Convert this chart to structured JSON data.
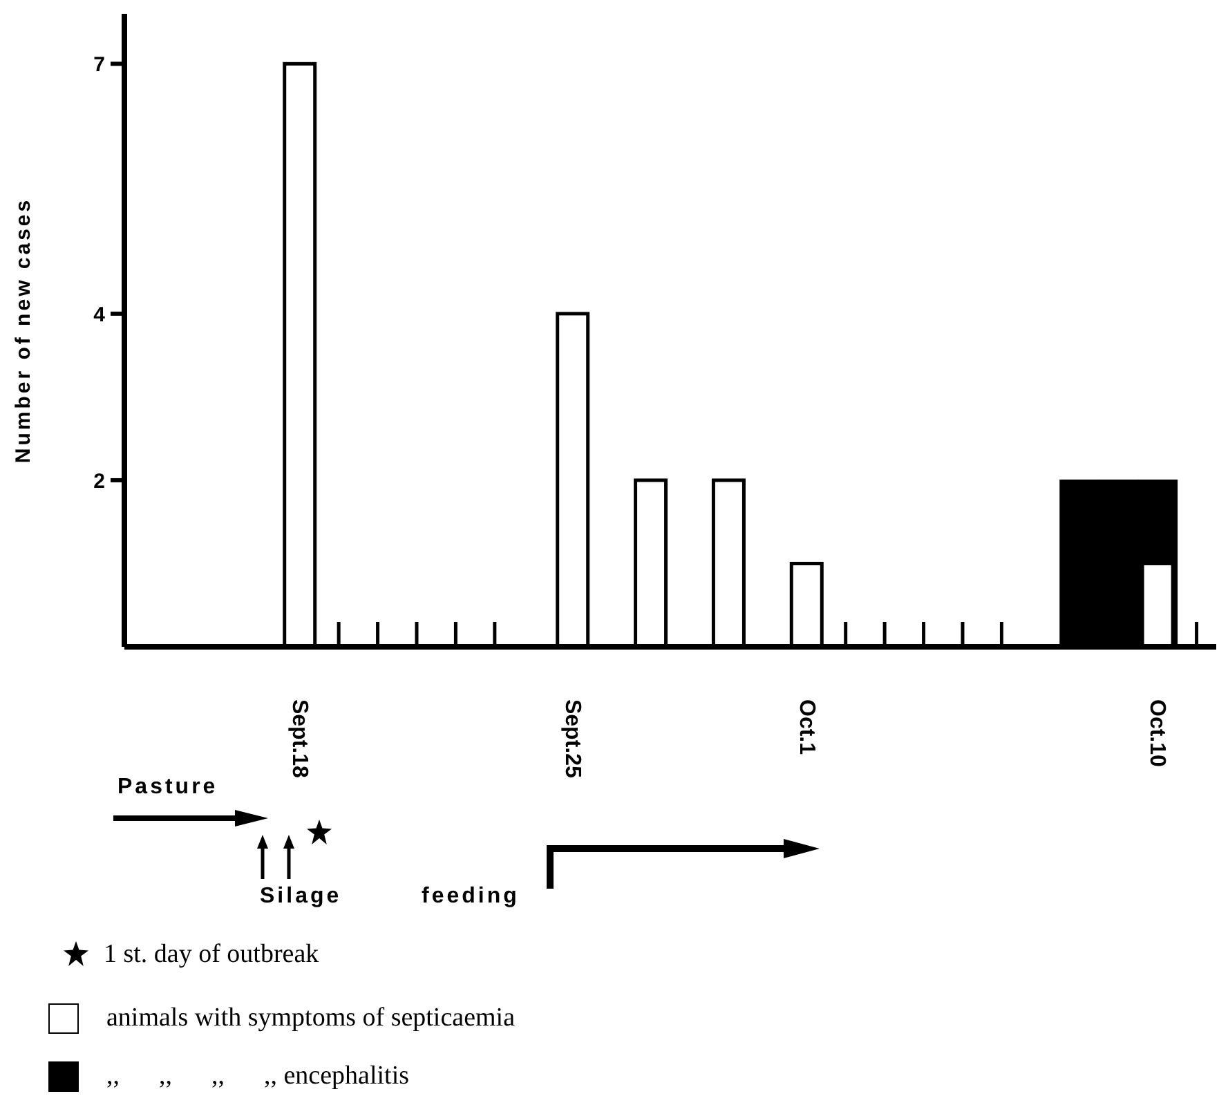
{
  "chart_data": {
    "type": "bar",
    "ylabel": "Number of new cases",
    "categories": [
      null,
      null,
      null,
      null,
      "Sept.18",
      null,
      null,
      null,
      null,
      null,
      null,
      "Sept.25",
      null,
      null,
      null,
      null,
      null,
      "Oct.1",
      null,
      null,
      null,
      null,
      null,
      null,
      null,
      null,
      "Oct.10",
      null
    ],
    "series": [
      {
        "name": ",,      ,,      ,,      ,, encephalitis",
        "color": "#000000",
        "values": [
          null,
          null,
          null,
          null,
          null,
          null,
          null,
          null,
          null,
          null,
          null,
          null,
          null,
          null,
          null,
          null,
          null,
          null,
          null,
          null,
          null,
          null,
          null,
          null,
          2,
          2,
          2,
          null
        ]
      },
      {
        "name": "animals with symptoms of septicaemia",
        "color": "#ffffff",
        "values": [
          null,
          null,
          null,
          null,
          7,
          0,
          0,
          0,
          0,
          0,
          null,
          4,
          null,
          2,
          null,
          2,
          null,
          1,
          0,
          0,
          0,
          0,
          0,
          null,
          null,
          null,
          1,
          0
        ]
      }
    ],
    "ylim": [
      0,
      7.6
    ],
    "yticks": [
      2,
      4,
      7
    ],
    "legend": "bottom",
    "annotations": [
      "Pasture",
      "Silage",
      "feeding",
      "1 st. day of outbreak"
    ]
  }
}
